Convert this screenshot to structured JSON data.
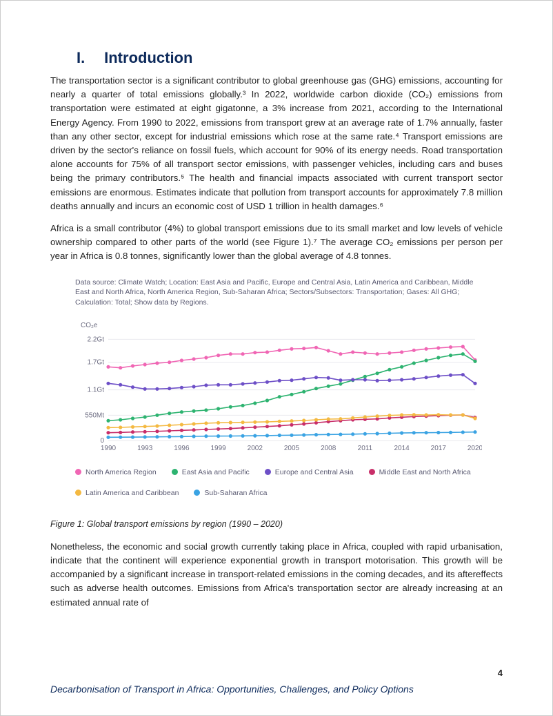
{
  "heading": {
    "roman": "I.",
    "text": "Introduction"
  },
  "para1": "The transportation sector is a significant contributor to global greenhouse gas (GHG) emissions, accounting for nearly a quarter of total emissions globally.³ In 2022, worldwide carbon dioxide (CO₂) emissions from transportation were estimated at eight gigatonne, a 3% increase from 2021, according to the International Energy Agency. From 1990 to 2022, emissions from transport grew at an average rate of 1.7% annually, faster than any other sector, except for industrial emissions which rose at the same rate.⁴ Transport emissions are driven by the sector's reliance on fossil fuels, which account for 90% of its energy needs. Road transportation alone accounts for 75% of all transport sector emissions, with passenger vehicles, including cars and buses being the primary contributors.⁵ The health and financial impacts associated with current transport sector emissions are enormous. Estimates indicate that pollution from transport accounts for approximately 7.8 million deaths annually and incurs an economic cost of USD 1 trillion in health damages.⁶",
  "para2": "Africa is a small contributor (4%) to global transport emissions due to its small market and low levels of vehicle ownership compared to other parts of the world (see Figure 1).⁷ The average CO₂ emissions per person per year in Africa is 0.8 tonnes, significantly lower than the global average of 4.8 tonnes.",
  "para3": "Nonetheless, the economic and social growth currently taking place in Africa, coupled with rapid urbanisation, indicate that the continent will experience exponential growth in transport motorisation. This growth will be accompanied by a significant increase in transport-related emissions in the coming decades, and its aftereffects such as adverse health outcomes. Emissions from Africa's transportation sector are already increasing at an estimated annual rate of",
  "figure_caption_top": "Data source: Climate Watch; Location: East Asia and Pacific, Europe and Central Asia, Latin America and Caribbean, Middle East and North Africa, North America Region, Sub-Saharan Africa; Sectors/Subsectors: Transportation; Gases: All GHG; Calculation: Total; Show data by Regions.",
  "figure_label": "Figure 1:  Global transport emissions by region (1990 – 2020)",
  "chart": {
    "type": "line",
    "y_label": "CO₂e",
    "y_ticks": [
      0,
      550,
      1100,
      1700,
      2200
    ],
    "y_tick_labels": [
      "0",
      "550Mt",
      "1.1Gt",
      "1.7Gt",
      "2.2Gt"
    ],
    "x_ticks": [
      1990,
      1993,
      1996,
      1999,
      2002,
      2005,
      2008,
      2011,
      2014,
      2017,
      2020
    ],
    "x_years": [
      1990,
      1991,
      1992,
      1993,
      1994,
      1995,
      1996,
      1997,
      1998,
      1999,
      2000,
      2001,
      2002,
      2003,
      2004,
      2005,
      2006,
      2007,
      2008,
      2009,
      2010,
      2011,
      2012,
      2013,
      2014,
      2015,
      2016,
      2017,
      2018,
      2019,
      2020
    ],
    "ylim": [
      0,
      2400
    ],
    "grid_color": "#e8e8ee",
    "axis_color": "#b5b5c0",
    "label_color": "#6b6b80",
    "label_fontsize": 10,
    "marker_radius": 2.6,
    "line_width": 1.6,
    "background": "#ffffff",
    "series": [
      {
        "name": "North America Region",
        "color": "#f066b4",
        "values": [
          1600,
          1580,
          1620,
          1650,
          1680,
          1700,
          1740,
          1770,
          1800,
          1850,
          1880,
          1880,
          1910,
          1920,
          1960,
          1990,
          2000,
          2020,
          1950,
          1880,
          1920,
          1900,
          1880,
          1900,
          1920,
          1960,
          1990,
          2010,
          2030,
          2040,
          1750
        ]
      },
      {
        "name": "East Asia and Pacific",
        "color": "#2db370",
        "values": [
          430,
          450,
          480,
          510,
          550,
          590,
          620,
          640,
          660,
          690,
          730,
          760,
          810,
          870,
          950,
          1000,
          1060,
          1130,
          1180,
          1230,
          1310,
          1390,
          1460,
          1540,
          1600,
          1680,
          1740,
          1800,
          1850,
          1880,
          1720
        ]
      },
      {
        "name": "Europe and Central Asia",
        "color": "#6d4fc7",
        "values": [
          1240,
          1210,
          1160,
          1120,
          1120,
          1130,
          1150,
          1170,
          1200,
          1210,
          1210,
          1230,
          1250,
          1270,
          1300,
          1310,
          1340,
          1370,
          1360,
          1310,
          1320,
          1320,
          1300,
          1310,
          1320,
          1340,
          1370,
          1400,
          1420,
          1430,
          1240
        ]
      },
      {
        "name": "Middle East and North Africa",
        "color": "#c82e69",
        "values": [
          170,
          175,
          185,
          190,
          200,
          210,
          220,
          230,
          240,
          250,
          260,
          275,
          290,
          305,
          320,
          340,
          360,
          385,
          410,
          430,
          450,
          460,
          470,
          490,
          505,
          520,
          530,
          540,
          550,
          555,
          500
        ]
      },
      {
        "name": "Latin America and Caribbean",
        "color": "#f4b941",
        "values": [
          280,
          285,
          295,
          305,
          315,
          330,
          345,
          360,
          375,
          385,
          390,
          395,
          400,
          405,
          415,
          425,
          435,
          450,
          465,
          470,
          490,
          510,
          530,
          545,
          555,
          560,
          555,
          560,
          555,
          555,
          480
        ]
      },
      {
        "name": "Sub-Saharan Africa",
        "color": "#3aa3e3",
        "values": [
          70,
          72,
          74,
          77,
          80,
          83,
          86,
          90,
          94,
          96,
          98,
          100,
          103,
          107,
          112,
          116,
          120,
          126,
          130,
          133,
          138,
          145,
          150,
          158,
          164,
          168,
          170,
          172,
          176,
          180,
          185
        ]
      }
    ]
  },
  "legend": [
    {
      "label": "North America Region",
      "color": "#f066b4"
    },
    {
      "label": "East Asia and Pacific",
      "color": "#2db370"
    },
    {
      "label": "Europe and Central Asia",
      "color": "#6d4fc7"
    },
    {
      "label": "Middle East and North Africa",
      "color": "#c82e69"
    },
    {
      "label": "Latin America and Caribbean",
      "color": "#f4b941"
    },
    {
      "label": "Sub-Saharan Africa",
      "color": "#3aa3e3"
    }
  ],
  "footer": {
    "title": "Decarbonisation of Transport in Africa: Opportunities, Challenges, and Policy Options",
    "page_number": "4"
  }
}
